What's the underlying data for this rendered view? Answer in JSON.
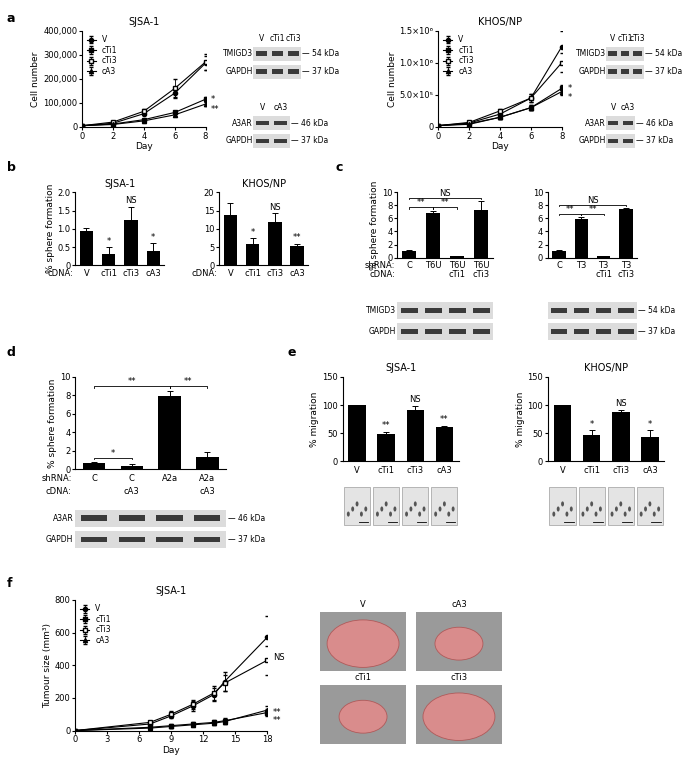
{
  "panel_labels": [
    "a",
    "b",
    "c",
    "d",
    "e",
    "f"
  ],
  "chart_data": [
    {
      "type": "line",
      "title": "SJSA-1",
      "xlabel": "Day",
      "ylabel": "Cell number",
      "x": [
        0,
        2,
        4,
        6,
        8
      ],
      "xlim": [
        0,
        8
      ],
      "xticks": [
        0,
        2,
        4,
        6,
        8
      ],
      "ylim": [
        0,
        400000
      ],
      "yticks": [
        0,
        {
          "value": 100000,
          "label": "100,000"
        },
        {
          "value": 200000,
          "label": "200,000"
        },
        {
          "value": 300000,
          "label": "300,000"
        },
        {
          "value": 400000,
          "label": "400,000"
        }
      ],
      "legend": "upper left",
      "series": [
        {
          "name": "V",
          "color": "#000000",
          "marker": "circle",
          "values": [
            5000,
            15000,
            55000,
            140000,
            265000
          ],
          "errors": [
            1000,
            2000,
            5000,
            15000,
            30000
          ]
        },
        {
          "name": "cTi1",
          "color": "#000000",
          "marker": "square",
          "values": [
            5000,
            12000,
            30000,
            60000,
            115000
          ],
          "errors": [
            1000,
            2000,
            4000,
            8000,
            10000
          ],
          "significance": "*"
        },
        {
          "name": "cTi3",
          "color": "#000000",
          "marker": "open square",
          "values": [
            5000,
            20000,
            65000,
            160000,
            270000
          ],
          "errors": [
            1000,
            3000,
            8000,
            40000,
            35000
          ]
        },
        {
          "name": "cA3",
          "color": "#000000",
          "marker": "triangle",
          "values": [
            5000,
            10000,
            25000,
            50000,
            95000
          ],
          "errors": [
            1000,
            1500,
            3000,
            6000,
            8000
          ],
          "significance": "**"
        }
      ],
      "blots": [
        {
          "lanes": [
            "V",
            "cTi1",
            "cTi3"
          ],
          "bands": [
            {
              "name": "TMIGD3",
              "size": "— 54 kDa"
            },
            {
              "name": "GAPDH",
              "size": "— 37 kDa"
            }
          ]
        },
        {
          "lanes": [
            "V",
            "cA3"
          ],
          "bands": [
            {
              "name": "A3AR",
              "size": "— 46 kDa"
            },
            {
              "name": "GAPDH",
              "size": "— 37 kDa"
            }
          ]
        }
      ]
    },
    {
      "type": "line",
      "title": "KHOS/NP",
      "xlabel": "Day",
      "ylabel": "Cell number",
      "x": [
        0,
        2,
        4,
        6,
        8
      ],
      "xlim": [
        0,
        8
      ],
      "xticks": [
        0,
        2,
        4,
        6,
        8
      ],
      "ylim": [
        0,
        1500000
      ],
      "yticks": [
        0,
        {
          "value": 500000,
          "label": "5.0×10⁵"
        },
        {
          "value": 1000000,
          "label": "1.0×10⁶"
        },
        {
          "value": 1500000,
          "label": "1.5×10⁶"
        }
      ],
      "legend": "upper left",
      "series": [
        {
          "name": "V",
          "color": "#000000",
          "marker": "circle",
          "values": [
            20000,
            60000,
            200000,
            450000,
            1250000
          ],
          "errors": [
            5000,
            10000,
            30000,
            60000,
            250000
          ]
        },
        {
          "name": "cTi1",
          "color": "#000000",
          "marker": "square",
          "values": [
            20000,
            50000,
            150000,
            300000,
            600000
          ],
          "errors": [
            5000,
            8000,
            20000,
            40000,
            60000
          ],
          "significance": "*"
        },
        {
          "name": "cTi3",
          "color": "#000000",
          "marker": "open square",
          "values": [
            20000,
            70000,
            250000,
            450000,
            1000000
          ],
          "errors": [
            5000,
            10000,
            30000,
            60000,
            150000
          ]
        },
        {
          "name": "cA3",
          "color": "#000000",
          "marker": "triangle",
          "values": [
            20000,
            40000,
            150000,
            300000,
            550000
          ],
          "errors": [
            5000,
            8000,
            20000,
            40000,
            50000
          ],
          "significance": "*"
        }
      ],
      "blots": [
        {
          "lanes": [
            "V",
            "cTi1",
            "cTi3"
          ],
          "bands": [
            {
              "name": "TMIGD3",
              "size": "— 54 kDa"
            },
            {
              "name": "GAPDH",
              "size": "— 37 kDa"
            }
          ]
        },
        {
          "lanes": [
            "V",
            "cA3"
          ],
          "bands": [
            {
              "name": "A3AR",
              "size": "— 46 kDa"
            },
            {
              "name": "GAPDH",
              "size": "— 37 kDa"
            }
          ]
        }
      ]
    },
    {
      "type": "bar",
      "title": "SJSA-1",
      "ylabel": "% sphere formation",
      "color": "#000000",
      "categories": [
        "V",
        "cTi1",
        "cTi3",
        "cA3"
      ],
      "category_label": "cDNA:",
      "values": [
        0.95,
        0.3,
        1.25,
        0.4
      ],
      "errors": [
        0.08,
        0.2,
        0.35,
        0.2
      ],
      "significance": [
        null,
        "*",
        "NS",
        "*"
      ],
      "ylim": [
        0,
        2.0
      ],
      "yticks": [
        0,
        0.5,
        1.0,
        1.5,
        2.0
      ]
    },
    {
      "type": "bar",
      "title": "KHOS/NP",
      "color": "#000000",
      "categories": [
        "V",
        "cTi1",
        "cTi3",
        "cA3"
      ],
      "category_label": "cDNA:",
      "values": [
        13.8,
        5.8,
        11.8,
        5.3
      ],
      "errors": [
        3.2,
        1.6,
        2.5,
        0.6
      ],
      "significance": [
        null,
        "*",
        "NS",
        "**"
      ],
      "ylim": [
        0,
        20
      ],
      "yticks": [
        0,
        5,
        10,
        15,
        20
      ]
    },
    {
      "type": "bar",
      "ylabel": "% sphere formation",
      "color": "#000000",
      "categories": [
        "C",
        "T6U",
        "T6U",
        "T6U"
      ],
      "category_label": "shRNA:",
      "sub_categories": [
        null,
        null,
        "cTi1",
        "cTi3"
      ],
      "sub_label": "cDNA:",
      "values": [
        1.0,
        6.9,
        0.2,
        7.3
      ],
      "errors": [
        0.1,
        0.3,
        0.05,
        1.3
      ],
      "brackets": [
        {
          "from": 0,
          "to": 1,
          "text": "**"
        },
        {
          "from": 1,
          "to": 2,
          "text": "**"
        },
        {
          "from": 0,
          "to": 3,
          "text": "NS"
        }
      ],
      "ylim": [
        0,
        10
      ],
      "yticks": [
        0,
        2,
        4,
        6,
        8,
        10
      ],
      "blots": [
        {
          "bands": [
            {
              "name": "TMIGD3"
            },
            {
              "name": "GAPDH"
            }
          ]
        }
      ]
    },
    {
      "type": "bar",
      "color": "#000000",
      "categories": [
        "C",
        "T3",
        "T3",
        "T3"
      ],
      "sub_categories": [
        null,
        null,
        "cTi1",
        "cTi3"
      ],
      "values": [
        1.0,
        5.9,
        0.2,
        7.4
      ],
      "errors": [
        0.1,
        0.3,
        0.1,
        0.2
      ],
      "brackets": [
        {
          "from": 0,
          "to": 1,
          "text": "**"
        },
        {
          "from": 1,
          "to": 2,
          "text": "**"
        },
        {
          "from": 0,
          "to": 3,
          "text": "NS"
        }
      ],
      "ylim": [
        0,
        10
      ],
      "yticks": [
        0,
        2,
        4,
        6,
        8,
        10
      ],
      "blots": [
        {
          "bands": [
            {
              "size": "— 54 kDa"
            },
            {
              "size": "— 37 kDa"
            }
          ]
        }
      ]
    },
    {
      "type": "bar",
      "ylabel": "% sphere formation",
      "color": "#000000",
      "categories": [
        "C",
        "C",
        "A2a",
        "A2a"
      ],
      "category_label": "shRNA:",
      "sub_categories": [
        null,
        "cA3",
        null,
        "cA3"
      ],
      "sub_label": "cDNA:",
      "values": [
        0.7,
        0.35,
        7.9,
        1.3
      ],
      "errors": [
        0.05,
        0.2,
        0.6,
        0.5
      ],
      "brackets": [
        {
          "from": 0,
          "to": 1,
          "text": "*"
        },
        {
          "from": 2,
          "to": 3,
          "text": "**"
        },
        {
          "from": 0,
          "to": 2,
          "text": "**"
        }
      ],
      "ylim": [
        0,
        10
      ],
      "yticks": [
        0,
        2,
        4,
        6,
        8,
        10
      ],
      "blots": [
        {
          "bands": [
            {
              "name": "A3AR",
              "size": "— 46 kDa"
            },
            {
              "name": "GAPDH",
              "size": "— 37 kDa"
            }
          ]
        }
      ]
    },
    {
      "type": "bar",
      "title": "SJSA-1",
      "ylabel": "% migration",
      "color": "#000000",
      "categories": [
        "V",
        "cTi1",
        "cTi3",
        "cA3"
      ],
      "values": [
        100,
        49,
        91,
        61
      ],
      "errors": [
        0,
        4,
        8,
        2
      ],
      "significance": [
        null,
        "**",
        "NS",
        "**"
      ],
      "ylim": [
        0,
        150
      ],
      "yticks": [
        0,
        50,
        100,
        150
      ]
    },
    {
      "type": "bar",
      "title": "KHOS/NP",
      "ylabel": "% migration",
      "color": "#000000",
      "categories": [
        "V",
        "cTi1",
        "cTi3",
        "cA3"
      ],
      "values": [
        100,
        47,
        88,
        43
      ],
      "errors": [
        0,
        8,
        4,
        12
      ],
      "significance": [
        null,
        "*",
        "NS",
        "*"
      ],
      "ylim": [
        0,
        150
      ],
      "yticks": [
        0,
        50,
        100,
        150
      ]
    },
    {
      "type": "line",
      "title": "SJSA-1",
      "xlabel": "Day",
      "ylabel": "Tumour size (mm³)",
      "x": [
        0,
        7,
        9,
        11,
        13,
        14,
        18
      ],
      "xlim": [
        0,
        18
      ],
      "xticks": [
        0,
        3,
        6,
        9,
        12,
        15,
        18
      ],
      "ylim": [
        0,
        800
      ],
      "yticks": [
        0,
        200,
        400,
        600,
        800
      ],
      "legend": "upper left",
      "series": [
        {
          "name": "V",
          "color": "#000000",
          "marker": "circle",
          "values": [
            0,
            40,
            90,
            150,
            220,
            300,
            570
          ],
          "errors": [
            0,
            8,
            15,
            30,
            40,
            60,
            130
          ]
        },
        {
          "name": "cTi1",
          "color": "#000000",
          "marker": "square",
          "values": [
            0,
            20,
            30,
            40,
            50,
            60,
            110
          ],
          "errors": [
            0,
            5,
            8,
            10,
            12,
            15,
            20
          ],
          "significance": "**"
        },
        {
          "name": "cTi3",
          "color": "#000000",
          "marker": "open square",
          "values": [
            0,
            50,
            100,
            160,
            230,
            290,
            430
          ],
          "errors": [
            0,
            10,
            20,
            30,
            40,
            50,
            90
          ],
          "significance": "NS"
        },
        {
          "name": "cA3",
          "color": "#000000",
          "marker": "triangle",
          "values": [
            0,
            15,
            25,
            35,
            45,
            55,
            125
          ],
          "errors": [
            0,
            5,
            8,
            10,
            12,
            15,
            25
          ],
          "significance": "**"
        }
      ],
      "photos": [
        "V",
        "cA3",
        "cTi1",
        "cTi3"
      ]
    }
  ]
}
